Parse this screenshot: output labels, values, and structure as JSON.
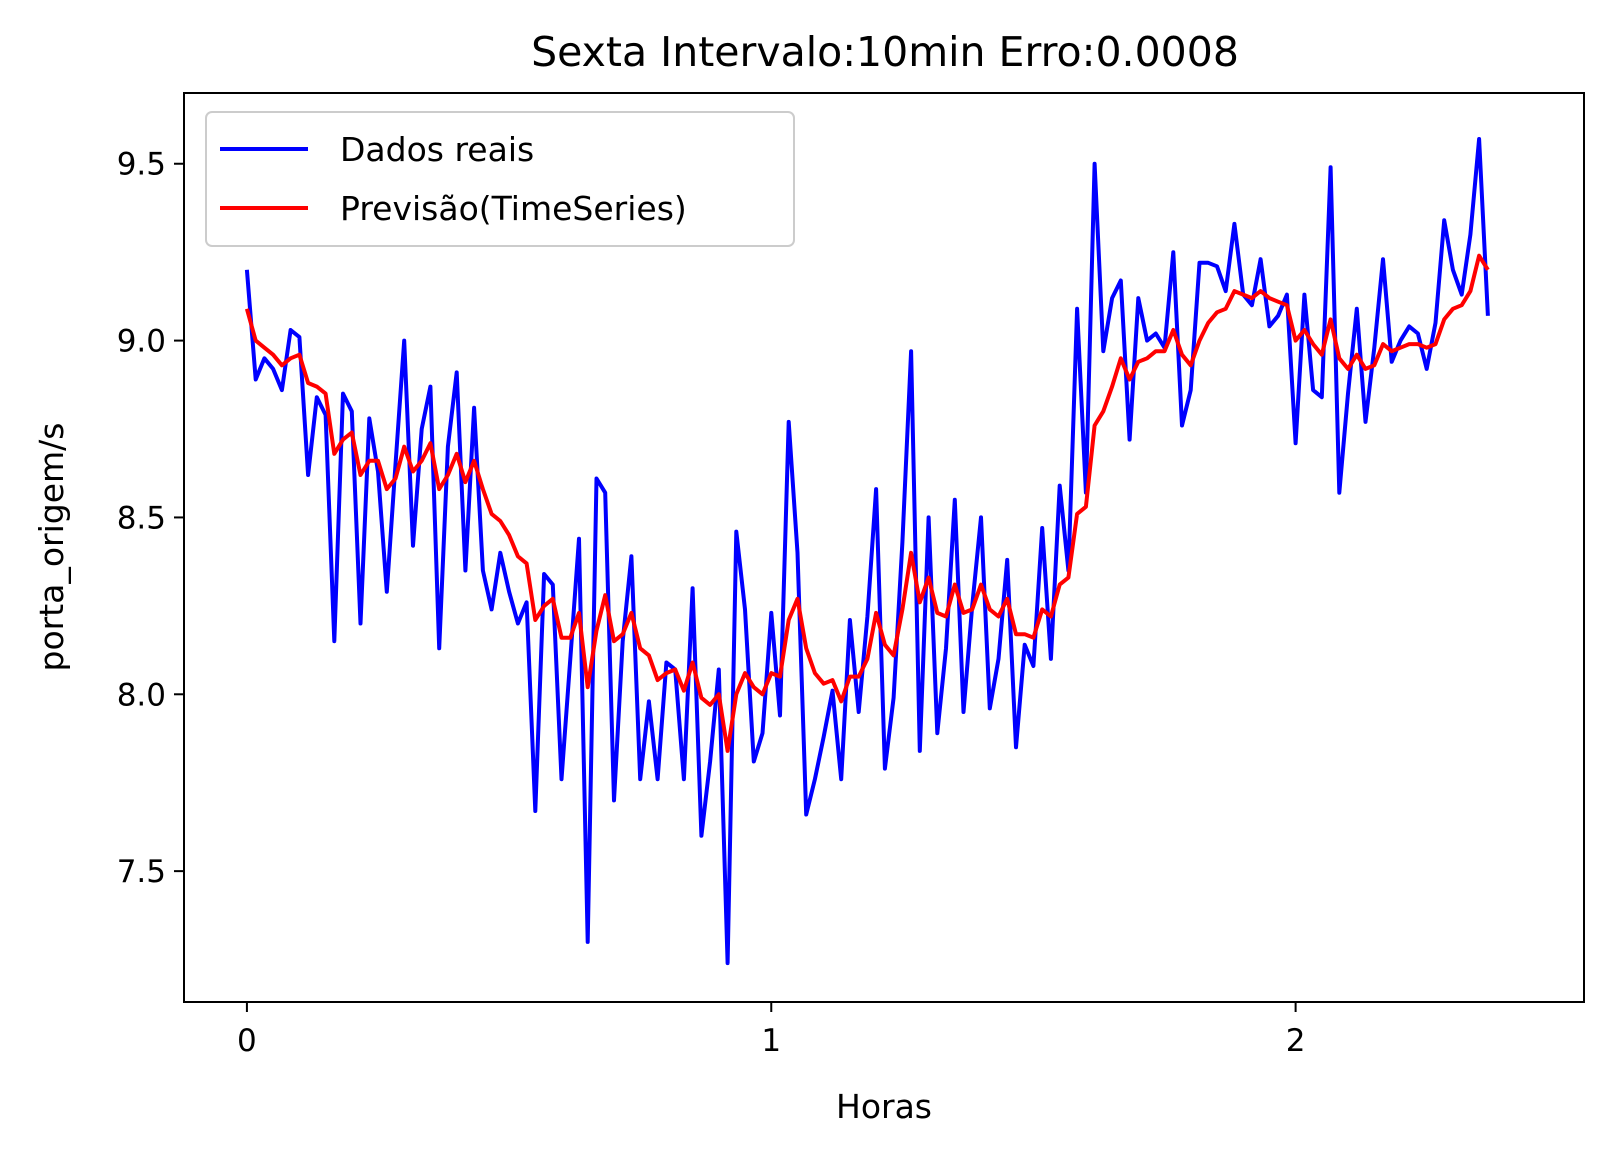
{
  "chart_data": {
    "type": "line",
    "title": "Sexta Intervalo:10min Erro:0.0008",
    "xlabel": "Horas",
    "ylabel": "porta_origem/s",
    "xlim": [
      -0.12,
      2.55
    ],
    "ylim": [
      7.13,
      9.7
    ],
    "xticks": [
      0,
      1,
      2
    ],
    "xtick_labels": [
      "0",
      "1",
      "2"
    ],
    "yticks": [
      7.5,
      8.0,
      8.5,
      9.0,
      9.5
    ],
    "ytick_labels": [
      "7.5",
      "8.0",
      "8.5",
      "9.0",
      "9.5"
    ],
    "grid": false,
    "legend_position": "upper-left",
    "series": [
      {
        "name": "Dados reais",
        "color": "#0000ff",
        "x": [
          0,
          0.0167,
          0.0333,
          0.05,
          0.0667,
          0.0833,
          0.1,
          0.1167,
          0.1333,
          0.15,
          0.1667,
          0.1833,
          0.2,
          0.2167,
          0.2333,
          0.25,
          0.2667,
          0.2833,
          0.3,
          0.3167,
          0.3333,
          0.35,
          0.3667,
          0.3833,
          0.4,
          0.4167,
          0.4333,
          0.45,
          0.4667,
          0.4833,
          0.5,
          0.5167,
          0.5333,
          0.55,
          0.5667,
          0.5833,
          0.6,
          0.6167,
          0.6333,
          0.65,
          0.6667,
          0.6833,
          0.7,
          0.7167,
          0.7333,
          0.75,
          0.7667,
          0.7833,
          0.8,
          0.8167,
          0.8333,
          0.85,
          0.8667,
          0.8833,
          0.9,
          0.9167,
          0.9333,
          0.95,
          0.9667,
          0.9833,
          1.0,
          1.0167,
          1.0333,
          1.05,
          1.0667,
          1.0833,
          1.1,
          1.1167,
          1.1333,
          1.15,
          1.1667,
          1.1833,
          1.2,
          1.2167,
          1.2333,
          1.25,
          1.2667,
          1.2833,
          1.3,
          1.3167,
          1.3333,
          1.35,
          1.3667,
          1.3833,
          1.4,
          1.4167,
          1.4333,
          1.45,
          1.4667,
          1.4833,
          1.5,
          1.5167,
          1.5333,
          1.55,
          1.5667,
          1.5833,
          1.6,
          1.6167,
          1.6333,
          1.65,
          1.6667,
          1.6833,
          1.7,
          1.7167,
          1.7333,
          1.75,
          1.7667,
          1.7833,
          1.8,
          1.8167,
          1.8333,
          1.85,
          1.8667,
          1.8833,
          1.9,
          1.9167,
          1.9333,
          1.95,
          1.9667,
          1.9833,
          2.0,
          2.0167,
          2.0333,
          2.05,
          2.0667,
          2.0833,
          2.1,
          2.1167,
          2.1333,
          2.15,
          2.1667,
          2.1833,
          2.2,
          2.2167,
          2.2333,
          2.25,
          2.2667,
          2.2833,
          2.3,
          2.3167,
          2.3333,
          2.35,
          2.3667
        ],
        "values": [
          9.2,
          8.89,
          8.95,
          8.92,
          8.86,
          9.03,
          9.01,
          8.62,
          8.84,
          8.79,
          8.15,
          8.85,
          8.8,
          8.2,
          8.78,
          8.63,
          8.29,
          8.65,
          9.0,
          8.42,
          8.75,
          8.87,
          8.13,
          8.7,
          8.91,
          8.35,
          8.81,
          8.35,
          8.24,
          8.4,
          8.29,
          8.2,
          8.26,
          7.67,
          8.34,
          8.31,
          7.76,
          8.1,
          8.44,
          7.3,
          8.61,
          8.57,
          7.7,
          8.15,
          8.39,
          7.76,
          7.98,
          7.76,
          8.09,
          8.07,
          7.76,
          8.3,
          7.6,
          7.81,
          8.07,
          7.24,
          8.46,
          8.24,
          7.81,
          7.89,
          8.23,
          7.94,
          8.77,
          8.4,
          7.66,
          7.76,
          7.88,
          8.01,
          7.76,
          8.21,
          7.95,
          8.22,
          8.58,
          7.79,
          7.99,
          8.43,
          8.97,
          7.84,
          8.5,
          7.89,
          8.13,
          8.55,
          7.95,
          8.25,
          8.5,
          7.96,
          8.1,
          8.38,
          7.85,
          8.14,
          8.08,
          8.47,
          8.1,
          8.59,
          8.35,
          9.09,
          8.57,
          9.5,
          8.97,
          9.12,
          9.17,
          8.72,
          9.12,
          9.0,
          9.02,
          8.98,
          9.25,
          8.76,
          8.86,
          9.22,
          9.22,
          9.21,
          9.14,
          9.33,
          9.13,
          9.1,
          9.23,
          9.04,
          9.07,
          9.13,
          8.71,
          9.13,
          8.86,
          8.84,
          9.49,
          8.57,
          8.85,
          9.09,
          8.77,
          8.98,
          9.23,
          8.94,
          9.0,
          9.04,
          9.02,
          8.92,
          9.05,
          9.34,
          9.2,
          9.13,
          9.3,
          9.57,
          9.07
        ]
      },
      {
        "name": "Previsão(TimeSeries)",
        "color": "#ff0000",
        "x": [
          0,
          0.0167,
          0.0333,
          0.05,
          0.0667,
          0.0833,
          0.1,
          0.1167,
          0.1333,
          0.15,
          0.1667,
          0.1833,
          0.2,
          0.2167,
          0.2333,
          0.25,
          0.2667,
          0.2833,
          0.3,
          0.3167,
          0.3333,
          0.35,
          0.3667,
          0.3833,
          0.4,
          0.4167,
          0.4333,
          0.45,
          0.4667,
          0.4833,
          0.5,
          0.5167,
          0.5333,
          0.55,
          0.5667,
          0.5833,
          0.6,
          0.6167,
          0.6333,
          0.65,
          0.6667,
          0.6833,
          0.7,
          0.7167,
          0.7333,
          0.75,
          0.7667,
          0.7833,
          0.8,
          0.8167,
          0.8333,
          0.85,
          0.8667,
          0.8833,
          0.9,
          0.9167,
          0.9333,
          0.95,
          0.9667,
          0.9833,
          1.0,
          1.0167,
          1.0333,
          1.05,
          1.0667,
          1.0833,
          1.1,
          1.1167,
          1.1333,
          1.15,
          1.1667,
          1.1833,
          1.2,
          1.2167,
          1.2333,
          1.25,
          1.2667,
          1.2833,
          1.3,
          1.3167,
          1.3333,
          1.35,
          1.3667,
          1.3833,
          1.4,
          1.4167,
          1.4333,
          1.45,
          1.4667,
          1.4833,
          1.5,
          1.5167,
          1.5333,
          1.55,
          1.5667,
          1.5833,
          1.6,
          1.6167,
          1.6333,
          1.65,
          1.6667,
          1.6833,
          1.7,
          1.7167,
          1.7333,
          1.75,
          1.7667,
          1.7833,
          1.8,
          1.8167,
          1.8333,
          1.85,
          1.8667,
          1.8833,
          1.9,
          1.9167,
          1.9333,
          1.95,
          1.9667,
          1.9833,
          2.0,
          2.0167,
          2.0333,
          2.05,
          2.0667,
          2.0833,
          2.1,
          2.1167,
          2.1333,
          2.15,
          2.1667,
          2.1833,
          2.2,
          2.2167,
          2.2333,
          2.25,
          2.2667,
          2.2833,
          2.3,
          2.3167,
          2.3333,
          2.35,
          2.3667
        ],
        "values": [
          9.09,
          9.0,
          8.98,
          8.96,
          8.93,
          8.95,
          8.96,
          8.88,
          8.87,
          8.85,
          8.68,
          8.72,
          8.74,
          8.62,
          8.66,
          8.66,
          8.58,
          8.61,
          8.7,
          8.63,
          8.66,
          8.71,
          8.58,
          8.62,
          8.68,
          8.6,
          8.66,
          8.58,
          8.51,
          8.49,
          8.45,
          8.39,
          8.37,
          8.21,
          8.25,
          8.27,
          8.16,
          8.16,
          8.23,
          8.02,
          8.18,
          8.28,
          8.15,
          8.17,
          8.23,
          8.13,
          8.11,
          8.04,
          8.06,
          8.07,
          8.01,
          8.09,
          7.99,
          7.97,
          8.0,
          7.84,
          8.0,
          8.06,
          8.02,
          8.0,
          8.06,
          8.05,
          8.21,
          8.27,
          8.13,
          8.06,
          8.03,
          8.04,
          7.98,
          8.05,
          8.05,
          8.1,
          8.23,
          8.14,
          8.11,
          8.24,
          8.4,
          8.26,
          8.33,
          8.23,
          8.22,
          8.31,
          8.23,
          8.24,
          8.31,
          8.24,
          8.22,
          8.27,
          8.17,
          8.17,
          8.16,
          8.24,
          8.22,
          8.31,
          8.33,
          8.51,
          8.53,
          8.76,
          8.8,
          8.87,
          8.95,
          8.89,
          8.94,
          8.95,
          8.97,
          8.97,
          9.03,
          8.96,
          8.93,
          9.0,
          9.05,
          9.08,
          9.09,
          9.14,
          9.13,
          9.12,
          9.14,
          9.12,
          9.11,
          9.1,
          9.0,
          9.03,
          8.99,
          8.96,
          9.06,
          8.95,
          8.92,
          8.96,
          8.92,
          8.93,
          8.99,
          8.97,
          8.98,
          8.99,
          8.99,
          8.98,
          8.99,
          9.06,
          9.09,
          9.1,
          9.14,
          9.24,
          9.2
        ]
      }
    ]
  }
}
